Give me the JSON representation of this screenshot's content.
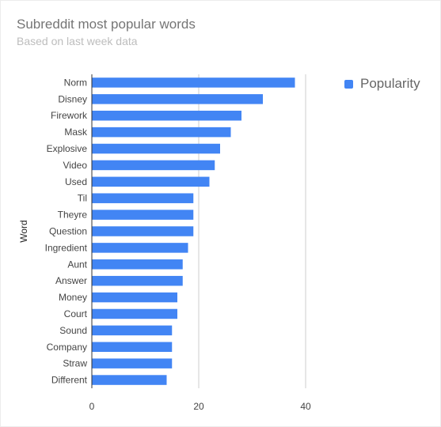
{
  "header": {
    "title": "Subreddit most popular words",
    "subtitle": "Based on last week data"
  },
  "chart_data": {
    "type": "bar",
    "orientation": "horizontal",
    "title": "Subreddit most popular words",
    "subtitle": "Based on last week data",
    "ylabel": "Word",
    "xlabel": "",
    "categories": [
      "Norm",
      "Disney",
      "Firework",
      "Mask",
      "Explosive",
      "Video",
      "Used",
      "Til",
      "Theyre",
      "Question",
      "Ingredient",
      "Aunt",
      "Answer",
      "Money",
      "Court",
      "Sound",
      "Company",
      "Straw",
      "Different"
    ],
    "series": [
      {
        "name": "Popularity",
        "color": "#4285f4",
        "values": [
          38,
          32,
          28,
          26,
          24,
          23,
          22,
          19,
          19,
          19,
          18,
          17,
          17,
          16,
          16,
          15,
          15,
          15,
          14
        ]
      }
    ],
    "xlim": [
      0,
      40
    ],
    "xticks": [
      0,
      20,
      40
    ],
    "grid": true,
    "legend_position": "top-right"
  }
}
